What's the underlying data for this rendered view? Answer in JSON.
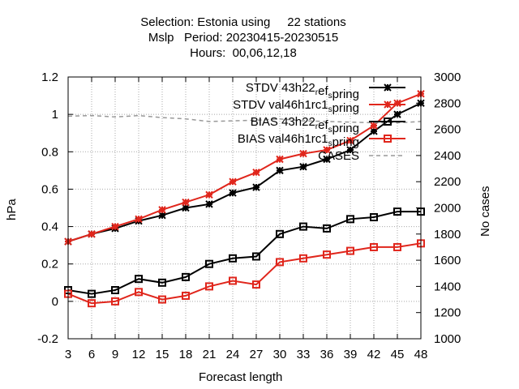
{
  "header": {
    "title_line1": "Selection: Estonia using     22 stations",
    "title_line2": "Mslp   Period: 20230415-20230515",
    "title_line3": "Hours:  00,06,12,18"
  },
  "axes": {
    "xlabel": "Forecast length",
    "ylabel_left": "hPa",
    "ylabel_right": "No cases"
  },
  "chart_data": {
    "type": "line",
    "title": "Selection: Estonia using 22 stations / Mslp Period: 20230415-20230515 / Hours: 00,06,12,18",
    "xlabel": "Forecast length",
    "ylabel": "hPa",
    "y2label": "No cases",
    "x": [
      3,
      6,
      9,
      12,
      15,
      18,
      21,
      24,
      27,
      30,
      33,
      36,
      39,
      42,
      45,
      48
    ],
    "xlim": [
      3,
      48
    ],
    "ylim": [
      -0.2,
      1.2
    ],
    "y2lim": [
      1000,
      3000
    ],
    "yticks": [
      "-0.2",
      "0",
      "0.2",
      "0.4",
      "0.6",
      "0.8",
      "1",
      "1.2"
    ],
    "y2ticks": [
      "1000",
      "1200",
      "1400",
      "1600",
      "1800",
      "2000",
      "2200",
      "2400",
      "2600",
      "2800",
      "3000"
    ],
    "grid": true,
    "legend_position": "top-right",
    "series": [
      {
        "name": "STDV 43h22_ref_spring",
        "legend_parts": [
          "STDV 43h22",
          "r",
          "ef",
          "s",
          "pring"
        ],
        "color": "#000000",
        "marker": "star",
        "axis": "left",
        "values": [
          0.32,
          0.36,
          0.39,
          0.43,
          0.46,
          0.5,
          0.52,
          0.58,
          0.61,
          0.7,
          0.72,
          0.76,
          0.81,
          0.91,
          1.0,
          1.06
        ]
      },
      {
        "name": "STDV val46h1rc1_spring",
        "legend_parts": [
          "STDV val46h1rc1",
          "",
          "",
          "s",
          "pring"
        ],
        "color": "#e0261c",
        "marker": "star",
        "axis": "left",
        "values": [
          0.32,
          0.36,
          0.4,
          0.44,
          0.49,
          0.53,
          0.57,
          0.64,
          0.69,
          0.76,
          0.79,
          0.81,
          0.86,
          0.94,
          1.06,
          1.11
        ]
      },
      {
        "name": "BIAS 43h22_ref_spring",
        "legend_parts": [
          "BIAS 43h22",
          "r",
          "ef",
          "s",
          "pring"
        ],
        "color": "#000000",
        "marker": "square",
        "axis": "left",
        "values": [
          0.06,
          0.04,
          0.06,
          0.12,
          0.1,
          0.13,
          0.2,
          0.23,
          0.24,
          0.36,
          0.4,
          0.39,
          0.44,
          0.45,
          0.48,
          0.48
        ]
      },
      {
        "name": "BIAS val46h1rc1_spring",
        "legend_parts": [
          "BIAS val46h1rc1",
          "",
          "",
          "s",
          "pring"
        ],
        "color": "#e0261c",
        "marker": "square",
        "axis": "left",
        "values": [
          0.04,
          -0.01,
          0.0,
          0.05,
          0.01,
          0.03,
          0.08,
          0.11,
          0.09,
          0.21,
          0.23,
          0.25,
          0.27,
          0.29,
          0.29,
          0.31
        ]
      },
      {
        "name": "CASES",
        "legend_parts": [
          "CASES",
          "",
          "",
          "",
          ""
        ],
        "color": "#999999",
        "marker": "none",
        "dashed": true,
        "axis": "right",
        "x": [
          3,
          6,
          9,
          12,
          15,
          18,
          21,
          24,
          27,
          30,
          33,
          36,
          39,
          42,
          45,
          48
        ],
        "values": [
          2700,
          2705,
          2695,
          2705,
          2690,
          2680,
          2660,
          2665,
          2670,
          2680,
          2665,
          2660,
          2655,
          2650,
          2650,
          2660
        ]
      }
    ]
  }
}
